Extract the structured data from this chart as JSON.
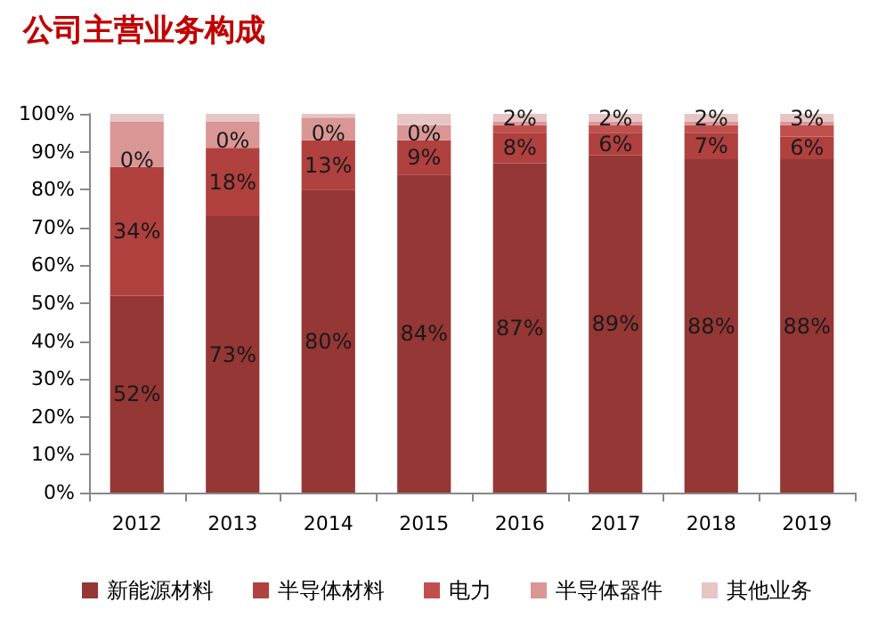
{
  "chart_data": {
    "type": "bar",
    "title": "公司主营业务构成",
    "stacked": true,
    "categories": [
      "2012",
      "2013",
      "2014",
      "2015",
      "2016",
      "2017",
      "2018",
      "2019"
    ],
    "series": [
      {
        "name": "新能源材料",
        "color": "#953735",
        "values": [
          52,
          73,
          80,
          84,
          87,
          89,
          88,
          88
        ],
        "value_labels": [
          "52%",
          "73%",
          "80%",
          "84%",
          "87%",
          "89%",
          "88%",
          "88%"
        ]
      },
      {
        "name": "半导体材料",
        "color": "#b0413e",
        "values": [
          34,
          18,
          13,
          9,
          8,
          6,
          7,
          6
        ],
        "value_labels": [
          "34%",
          "18%",
          "13%",
          "9%",
          "8%",
          "6%",
          "7%",
          "6%"
        ]
      },
      {
        "name": "电力",
        "color": "#c0504d",
        "values": [
          0,
          0,
          0,
          0,
          2,
          2,
          2,
          3
        ],
        "value_labels": [
          "0%",
          "0%",
          "0%",
          "0%",
          "2%",
          "2%",
          "2%",
          "3%"
        ]
      },
      {
        "name": "半导体器件",
        "color": "#d99694",
        "values": [
          12,
          7,
          6,
          4,
          1,
          1,
          1,
          1
        ]
      },
      {
        "name": "其他业务",
        "color": "#e6c6c5",
        "values": [
          2,
          2,
          1,
          3,
          2,
          2,
          2,
          2
        ]
      }
    ],
    "ylim": [
      0,
      100
    ],
    "yticks": [
      {
        "value": 0,
        "label": "0%"
      },
      {
        "value": 10,
        "label": "10%"
      },
      {
        "value": 20,
        "label": "20%"
      },
      {
        "value": 30,
        "label": "30%"
      },
      {
        "value": 40,
        "label": "40%"
      },
      {
        "value": 50,
        "label": "50%"
      },
      {
        "value": 60,
        "label": "60%"
      },
      {
        "value": 70,
        "label": "70%"
      },
      {
        "value": 80,
        "label": "80%"
      },
      {
        "value": 90,
        "label": "90%"
      },
      {
        "value": 100,
        "label": "100%"
      }
    ],
    "grid": false,
    "legend": "bottom"
  }
}
